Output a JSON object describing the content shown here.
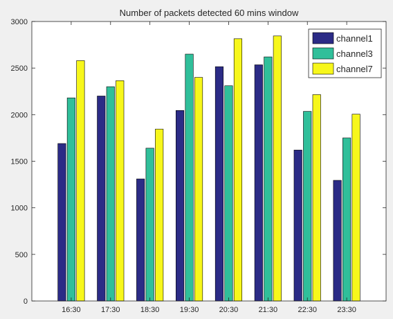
{
  "chart_data": {
    "type": "bar",
    "title": "Number of packets detected 60 mins window",
    "xlabel": "",
    "ylabel": "",
    "categories": [
      "16:30",
      "17:30",
      "18:30",
      "19:30",
      "20:30",
      "21:30",
      "22:30",
      "23:30"
    ],
    "ylim": [
      0,
      3000
    ],
    "yticks": [
      0,
      500,
      1000,
      1500,
      2000,
      2500,
      3000
    ],
    "grid": false,
    "legend_position": "top-right",
    "series": [
      {
        "name": "channel1",
        "color": "#2b2b86",
        "values": [
          1690,
          2200,
          1310,
          2045,
          2515,
          2535,
          1620,
          1295
        ]
      },
      {
        "name": "channel3",
        "color": "#30bf9a",
        "values": [
          2180,
          2300,
          1640,
          2650,
          2310,
          2620,
          2035,
          1750
        ]
      },
      {
        "name": "channel7",
        "color": "#f7f71b",
        "values": [
          2580,
          2365,
          1845,
          2400,
          2815,
          2845,
          2215,
          2005
        ]
      }
    ]
  }
}
